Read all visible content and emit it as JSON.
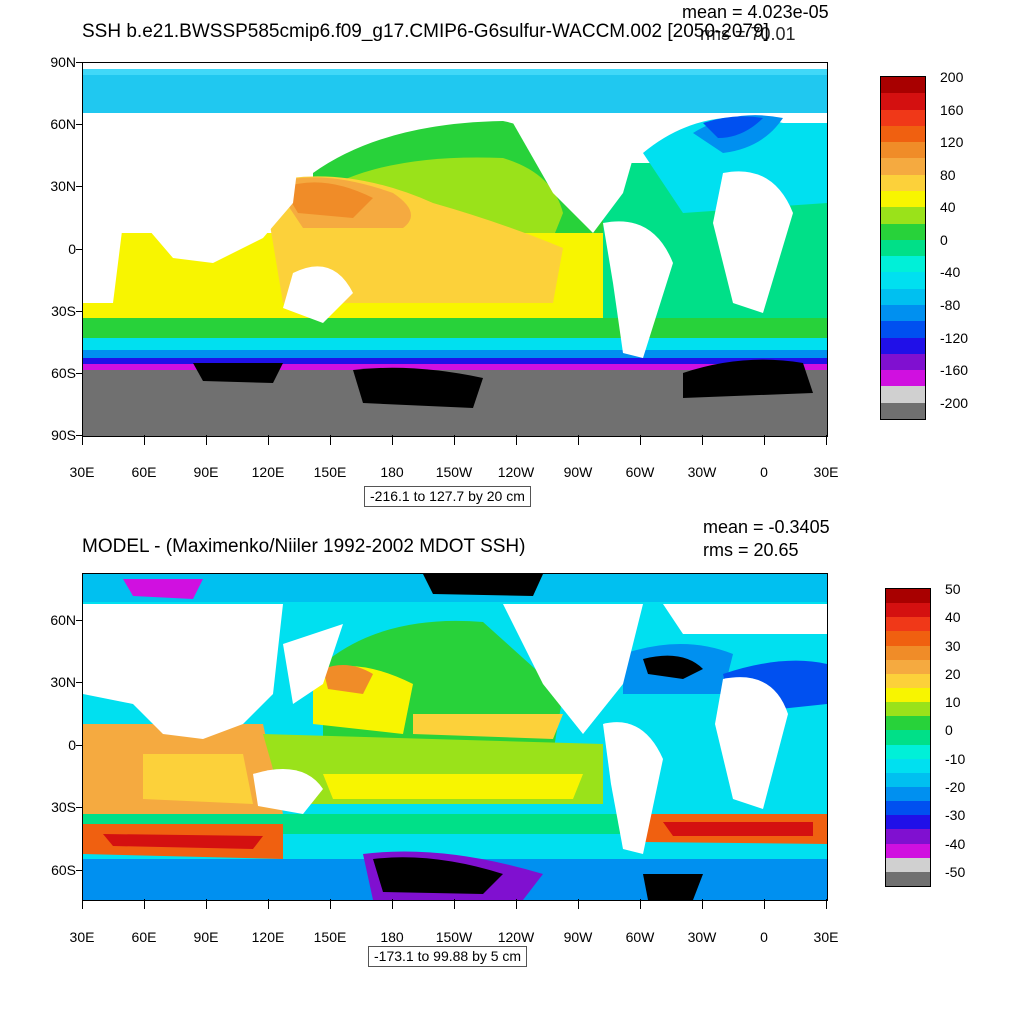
{
  "panels": [
    {
      "title": "SSH b.e21.BWSSP585cmip6.f09_g17.CMIP6-G6sulfur-WACCM.002 [2050-2079]",
      "mean": "mean = 4.023e-05",
      "rms": "rms = 70.01",
      "range": "-216.1 to 127.7 by 20 cm",
      "lat_labels": [
        "90N",
        "60N",
        "30N",
        "0",
        "30S",
        "60S",
        "90S"
      ],
      "lon_labels": [
        "30E",
        "60E",
        "90E",
        "120E",
        "150E",
        "180",
        "150W",
        "120W",
        "90W",
        "60W",
        "30W",
        "0",
        "30E"
      ],
      "colorbar": {
        "labels": [
          "200",
          "160",
          "120",
          "80",
          "40",
          "0",
          "-40",
          "-80",
          "-120",
          "-160",
          "-200"
        ],
        "colors": [
          "#a80000",
          "#d41010",
          "#f03818",
          "#f06010",
          "#f08c28",
          "#f5aa40",
          "#fcd13a",
          "#f8f500",
          "#9ae21a",
          "#28d23a",
          "#00e088",
          "#00f0d8",
          "#00e0f0",
          "#00c0f0",
          "#0090f0",
          "#0050f0",
          "#2010e8",
          "#8010d0",
          "#d010e0",
          "#d0d0d0",
          "#707070"
        ]
      }
    },
    {
      "title": "MODEL - (Maximenko/Niiler 1992-2002 MDOT SSH)",
      "mean": "mean = -0.3405",
      "rms": "rms = 20.65",
      "range": "-173.1 to 99.88 by 5 cm",
      "lat_labels": [
        "60N",
        "30N",
        "0",
        "30S",
        "60S"
      ],
      "lon_labels": [
        "30E",
        "60E",
        "90E",
        "120E",
        "150E",
        "180",
        "150W",
        "120W",
        "90W",
        "60W",
        "30W",
        "0",
        "30E"
      ],
      "colorbar": {
        "labels": [
          "50",
          "40",
          "30",
          "20",
          "10",
          "0",
          "-10",
          "-20",
          "-30",
          "-40",
          "-50"
        ],
        "colors": [
          "#a80000",
          "#d41010",
          "#f03818",
          "#f06010",
          "#f08c28",
          "#f5aa40",
          "#fcd13a",
          "#f8f500",
          "#9ae21a",
          "#28d23a",
          "#00e088",
          "#00f0d8",
          "#00e0f0",
          "#00c0f0",
          "#0090f0",
          "#0050f0",
          "#2010e8",
          "#8010d0",
          "#d010e0",
          "#d0d0d0",
          "#707070"
        ]
      }
    }
  ]
}
